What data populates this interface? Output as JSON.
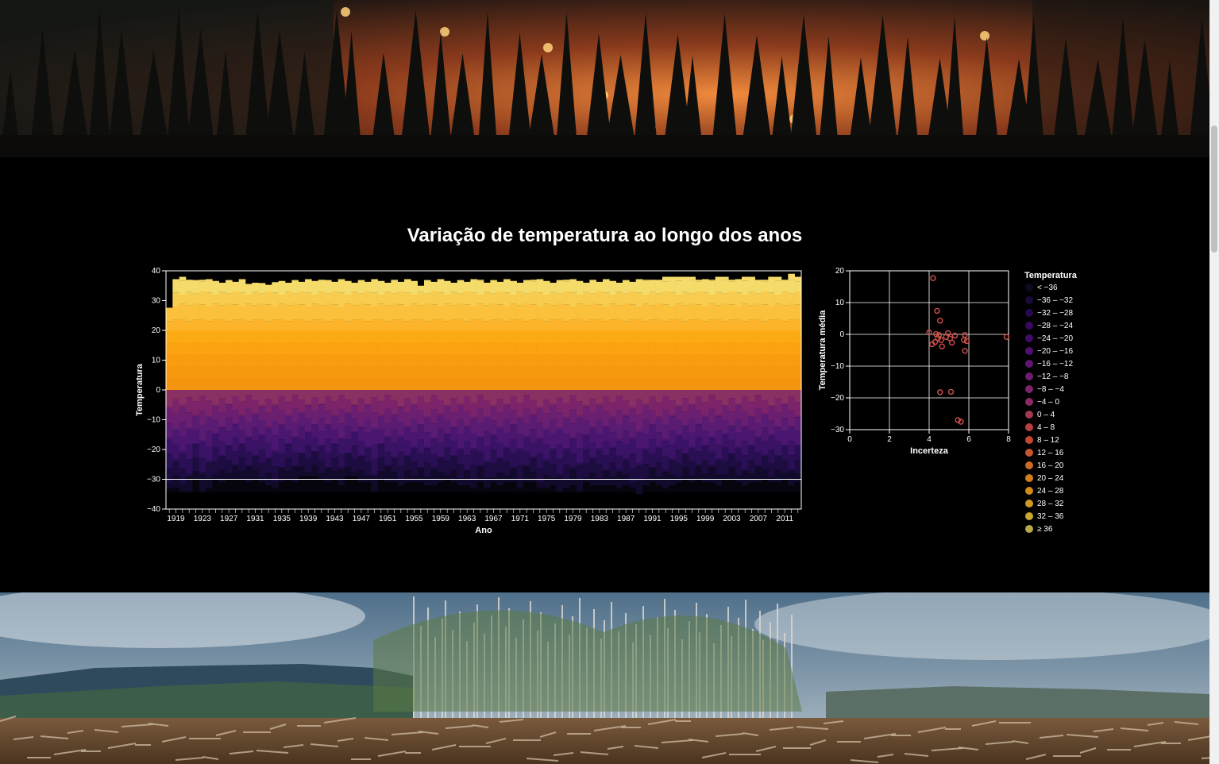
{
  "page": {
    "title": "Variação de temperatura ao longo dos anos"
  },
  "images": {
    "top": "forest-fire-photo",
    "bottom": "deforestation-photo"
  },
  "colors": {
    "background": "#000000",
    "text": "#ffffff",
    "grid": "#ffffff",
    "scatter_point": "#d0504a",
    "legend_swatches": [
      "#0d0a1f",
      "#1a0b3a",
      "#26094e",
      "#360a5e",
      "#430b68",
      "#51106f",
      "#5f1670",
      "#6d1d6f",
      "#7c236a",
      "#8b2a62",
      "#a13a4e",
      "#b5403f",
      "#c4463a",
      "#c8552e",
      "#cb6a24",
      "#d07d1b",
      "#d28a1a",
      "#cf9a22",
      "#c9a532",
      "#b6a84d"
    ]
  },
  "chart_data": [
    {
      "type": "bar",
      "stacked": true,
      "xlabel": "Ano",
      "ylabel": "Temperatura",
      "ylim": [
        -40,
        40
      ],
      "yticks": [
        40,
        30,
        20,
        10,
        0,
        -10,
        -20,
        -30,
        -40
      ],
      "year_start": 1918,
      "year_end": 2013,
      "xticks": [
        "1919",
        "1923",
        "1927",
        "1931",
        "1935",
        "1939",
        "1943",
        "1947",
        "1951",
        "1955",
        "1959",
        "1963",
        "1967",
        "1971",
        "1975",
        "1979",
        "1983",
        "1987",
        "1991",
        "1995",
        "1999",
        "2003",
        "2007",
        "2011"
      ],
      "positive_bands": [
        {
          "name": "0 – 4",
          "top": 4
        },
        {
          "name": "4 – 8",
          "top": 8
        },
        {
          "name": "8 – 12",
          "top": 12
        },
        {
          "name": "12 – 16",
          "top": 16
        },
        {
          "name": "16 – 20",
          "top": 20
        },
        {
          "name": "20 – 24",
          "top": 24
        },
        {
          "name": "24 – 28",
          "top": 28
        },
        {
          "name": "28 – 32",
          "top": 32
        },
        {
          "name": "32 – 36",
          "top": 36
        }
      ],
      "positive_max": [
        27,
        36,
        38,
        37,
        36,
        37,
        36,
        36,
        36,
        36,
        36,
        36,
        35,
        36,
        35,
        35,
        35,
        36,
        36,
        36,
        36,
        37,
        36,
        37,
        36,
        36,
        36,
        36,
        36,
        36,
        36,
        36,
        36,
        36,
        37,
        36,
        36,
        36,
        35,
        36,
        36,
        36,
        36,
        36,
        36,
        36,
        36,
        37,
        36,
        36,
        36,
        36,
        36,
        36,
        36,
        37,
        36,
        36,
        36,
        36,
        37,
        37,
        36,
        36,
        37,
        36,
        36,
        36,
        36,
        36,
        36,
        36,
        37,
        37,
        37,
        38,
        38,
        38,
        38,
        38,
        37,
        37,
        37,
        38,
        38,
        37,
        37,
        38,
        38,
        37,
        37,
        38,
        38,
        37,
        39,
        38
      ],
      "negative_min": [
        -33,
        -33,
        -34,
        -34,
        -30,
        -34,
        -33,
        -30,
        -31,
        -30,
        -30,
        -30,
        -31,
        -30,
        -31,
        -32,
        -33,
        -31,
        -30,
        -31,
        -29,
        -29,
        -29,
        -30,
        -31,
        -30,
        -32,
        -29,
        -29,
        -31,
        -31,
        -34,
        -30,
        -31,
        -31,
        -32,
        -31,
        -31,
        -31,
        -32,
        -32,
        -31,
        -30,
        -31,
        -32,
        -32,
        -33,
        -31,
        -33,
        -31,
        -32,
        -31,
        -31,
        -33,
        -31,
        -31,
        -33,
        -33,
        -32,
        -34,
        -33,
        -32,
        -34,
        -31,
        -32,
        -32,
        -32,
        -32,
        -33,
        -32,
        -33,
        -35,
        -32,
        -31,
        -32,
        -33,
        -32,
        -31,
        -30,
        -31,
        -30,
        -31,
        -31,
        -32,
        -30,
        -30,
        -31,
        -32,
        -31,
        -31,
        -30,
        -31,
        -31,
        -30,
        -32,
        -31
      ]
    },
    {
      "type": "scatter",
      "xlabel": "Incerteza",
      "ylabel": "Temperatura média",
      "xlim": [
        0,
        8
      ],
      "ylim": [
        -30,
        20
      ],
      "xticks": [
        0,
        2,
        4,
        6,
        8
      ],
      "yticks": [
        20,
        10,
        0,
        -10,
        -20,
        -30
      ],
      "points": [
        [
          4.2,
          17.7
        ],
        [
          4.4,
          7.4
        ],
        [
          4.55,
          4.3
        ],
        [
          4.0,
          0.6
        ],
        [
          4.35,
          0.1
        ],
        [
          4.5,
          -0.2
        ],
        [
          4.45,
          -1.2
        ],
        [
          4.6,
          -1.8
        ],
        [
          4.3,
          -2.4
        ],
        [
          4.15,
          -3.1
        ],
        [
          4.65,
          -3.8
        ],
        [
          4.85,
          -0.8
        ],
        [
          4.95,
          0.4
        ],
        [
          5.05,
          -1.3
        ],
        [
          5.15,
          -2.6
        ],
        [
          5.3,
          -0.4
        ],
        [
          5.8,
          -0.2
        ],
        [
          5.75,
          -1.8
        ],
        [
          5.9,
          -2.1
        ],
        [
          5.8,
          -5.2
        ],
        [
          7.9,
          -0.8
        ],
        [
          4.55,
          -18.2
        ],
        [
          5.1,
          -18.1
        ],
        [
          5.45,
          -27.0
        ],
        [
          5.6,
          -27.5
        ]
      ]
    }
  ],
  "legend": {
    "title": "Temperatura",
    "items": [
      "< −36",
      "−36 – −32",
      "−32 – −28",
      "−28 – −24",
      "−24 – −20",
      "−20 – −16",
      "−16 – −12",
      "−12 – −8",
      "−8 – −4",
      "−4 – 0",
      "0 – 4",
      "4 – 8",
      "8 – 12",
      "12 – 16",
      "16 – 20",
      "20 – 24",
      "24 – 28",
      "28 – 32",
      "32 – 36",
      "≥ 36"
    ]
  }
}
